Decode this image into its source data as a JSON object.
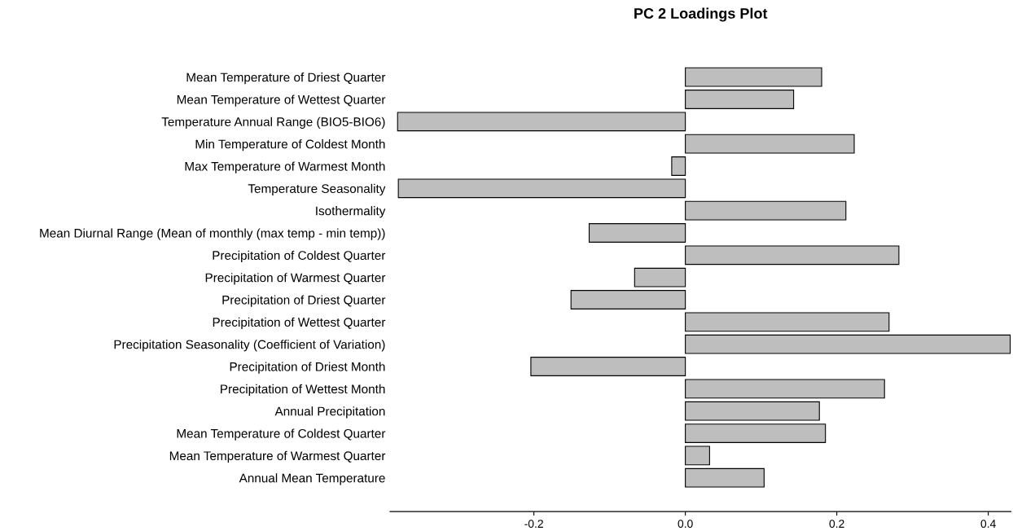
{
  "chart_data": {
    "type": "bar",
    "orientation": "horizontal",
    "title": "PC 2 Loadings Plot",
    "categories": [
      "Mean Temperature of Driest Quarter",
      "Mean Temperature of Wettest Quarter",
      "Temperature Annual Range (BIO5-BIO6)",
      "Min Temperature of Coldest Month",
      "Max Temperature of Warmest Month",
      "Temperature Seasonality",
      "Isothermality",
      "Mean Diurnal Range (Mean of monthly (max temp - min temp))",
      "Precipitation of Coldest Quarter",
      "Precipitation of Warmest Quarter",
      "Precipitation of Driest Quarter",
      "Precipitation of Wettest Quarter",
      "Precipitation Seasonality (Coefficient of Variation)",
      "Precipitation of Driest Month",
      "Precipitation of Wettest Month",
      "Annual Precipitation",
      "Mean Temperature of Coldest Quarter",
      "Mean Temperature of Warmest Quarter",
      "Annual Mean Temperature"
    ],
    "values": [
      0.18,
      0.143,
      -0.38,
      0.223,
      -0.018,
      -0.379,
      0.212,
      -0.127,
      0.282,
      -0.067,
      -0.151,
      0.269,
      0.429,
      -0.204,
      0.263,
      0.177,
      0.185,
      0.032,
      0.104
    ],
    "color": "#bebebe",
    "xlim": [
      -0.39,
      0.43
    ],
    "xticks": [
      -0.2,
      {
        "value": 0.0,
        "label": "0.0"
      },
      0.2,
      0.4
    ],
    "grid": false
  }
}
